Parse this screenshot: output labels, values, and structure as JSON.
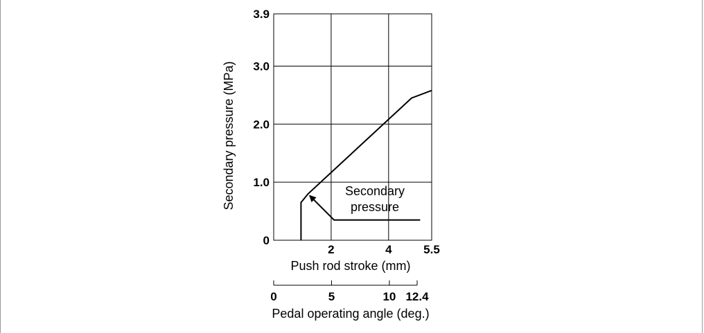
{
  "chart_data": {
    "type": "line",
    "title": "",
    "ylabel": "Secondary pressure (MPa)",
    "xlabel": "Push rod stroke (mm)",
    "x2label": "Pedal operating angle (deg.)",
    "ylim": [
      0,
      3.9
    ],
    "xlim": [
      0,
      5.5
    ],
    "grid": true,
    "y_ticks": [
      {
        "value": 0,
        "label": "0"
      },
      {
        "value": 1.0,
        "label": "1.0"
      },
      {
        "value": 2.0,
        "label": "2.0"
      },
      {
        "value": 3.0,
        "label": "3.0"
      },
      {
        "value": 3.9,
        "label": "3.9"
      }
    ],
    "x_ticks": [
      {
        "value": 2,
        "label": "2"
      },
      {
        "value": 4,
        "label": "4"
      },
      {
        "value": 5.5,
        "label": "5.5"
      }
    ],
    "x_gridlines": [
      2,
      4
    ],
    "x2_ticks": [
      {
        "value": 0,
        "label": "0"
      },
      {
        "value": 5,
        "label": "5"
      },
      {
        "value": 10,
        "label": "10"
      },
      {
        "value": 12.4,
        "label": "12.4"
      }
    ],
    "x2lim": [
      0,
      12.4
    ],
    "series": [
      {
        "x": [
          0.95,
          0.95,
          1.2,
          4.8,
          5.5
        ],
        "y": [
          0,
          0.65,
          0.8,
          2.45,
          2.58
        ]
      }
    ],
    "annotations": [
      {
        "text_lines": [
          "Secondary",
          "pressure"
        ],
        "arrow_from": [
          2.1,
          0.35
        ],
        "arrow_path_x": [
          5.1,
          2.1,
          1.25
        ],
        "arrow_path_y": [
          0.35,
          0.35,
          0.77
        ]
      }
    ]
  }
}
